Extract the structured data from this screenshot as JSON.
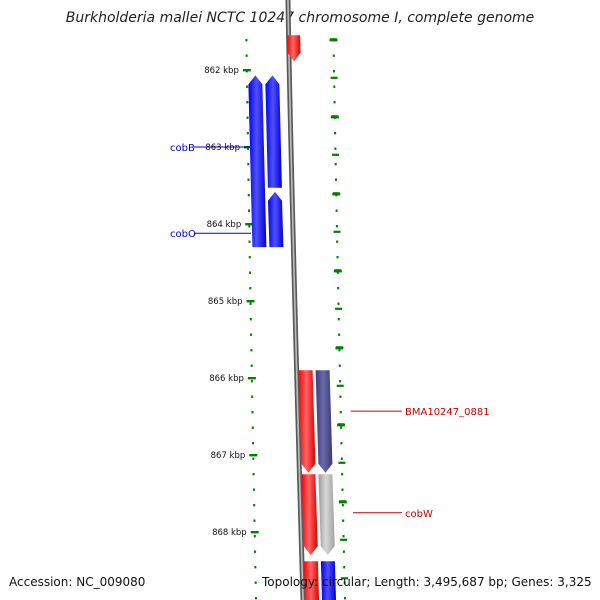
{
  "title": "Burkholderia mallei NCTC 10247 chromosome I, complete genome",
  "footer": {
    "accession": "Accession: NC_009080",
    "summary": "Topology: circular; Length: 3,495,687 bp; Genes: 3,325"
  },
  "colors": {
    "forward_cds": "#ff0000",
    "reverse_cds": "#0000ff",
    "slate_feature": "#4a4a8c",
    "grey_feature": "#b4b4b4",
    "pale_feature": "#c8c8ff",
    "backbone": "#8a8a8a",
    "ticks": "#008000",
    "blue_label": "#0000cc",
    "red_label": "#cc0000"
  },
  "axis": {
    "ticks": [
      {
        "kbp": 862,
        "label": "862 kbp"
      },
      {
        "kbp": 863,
        "label": "863 kbp"
      },
      {
        "kbp": 864,
        "label": "864 kbp"
      },
      {
        "kbp": 865,
        "label": "865 kbp"
      },
      {
        "kbp": 866,
        "label": "866 kbp"
      },
      {
        "kbp": 867,
        "label": "867 kbp"
      },
      {
        "kbp": 868,
        "label": "868 kbp"
      }
    ]
  },
  "features": [
    {
      "id": "f-top",
      "strand": "+",
      "color": "forward_cds",
      "start_kbp": 861.55,
      "end_kbp": 861.89
    },
    {
      "id": "f-cobB",
      "strand": "-",
      "color": "reverse_cds",
      "start_kbp": 862.07,
      "end_kbp": 864.3
    },
    {
      "id": "f-blue2a",
      "strand": "-",
      "color": "reverse_cds",
      "start_kbp": 862.07,
      "end_kbp": 863.53
    },
    {
      "id": "f-blue2b",
      "strand": "-",
      "color": "reverse_cds",
      "start_kbp": 863.58,
      "end_kbp": 864.3
    },
    {
      "id": "f-red1",
      "strand": "+",
      "color": "forward_cds",
      "start_kbp": 865.9,
      "end_kbp": 867.23
    },
    {
      "id": "f-slate",
      "strand": "+",
      "color": "slate_feature",
      "start_kbp": 865.9,
      "end_kbp": 867.23
    },
    {
      "id": "f-red2",
      "strand": "+",
      "color": "forward_cds",
      "start_kbp": 867.25,
      "end_kbp": 868.3
    },
    {
      "id": "f-grey",
      "strand": "+",
      "color": "grey_feature",
      "start_kbp": 867.25,
      "end_kbp": 868.3
    },
    {
      "id": "f-red3",
      "strand": "+",
      "color": "forward_cds",
      "start_kbp": 868.38,
      "end_kbp": 868.9
    },
    {
      "id": "f-blue3",
      "strand": "+",
      "color": "reverse_cds",
      "start_kbp": 868.38,
      "end_kbp": 868.9
    }
  ],
  "gene_labels": [
    {
      "text": "cobB",
      "side": "left",
      "at_kbp": 863.0,
      "color": "blue_label"
    },
    {
      "text": "cobO",
      "side": "left",
      "at_kbp": 864.12,
      "color": "blue_label"
    },
    {
      "text": "BMA10247_0881",
      "side": "right",
      "at_kbp": 866.43,
      "color": "red_label"
    },
    {
      "text": "cobW",
      "side": "right",
      "at_kbp": 867.75,
      "color": "red_label"
    }
  ]
}
